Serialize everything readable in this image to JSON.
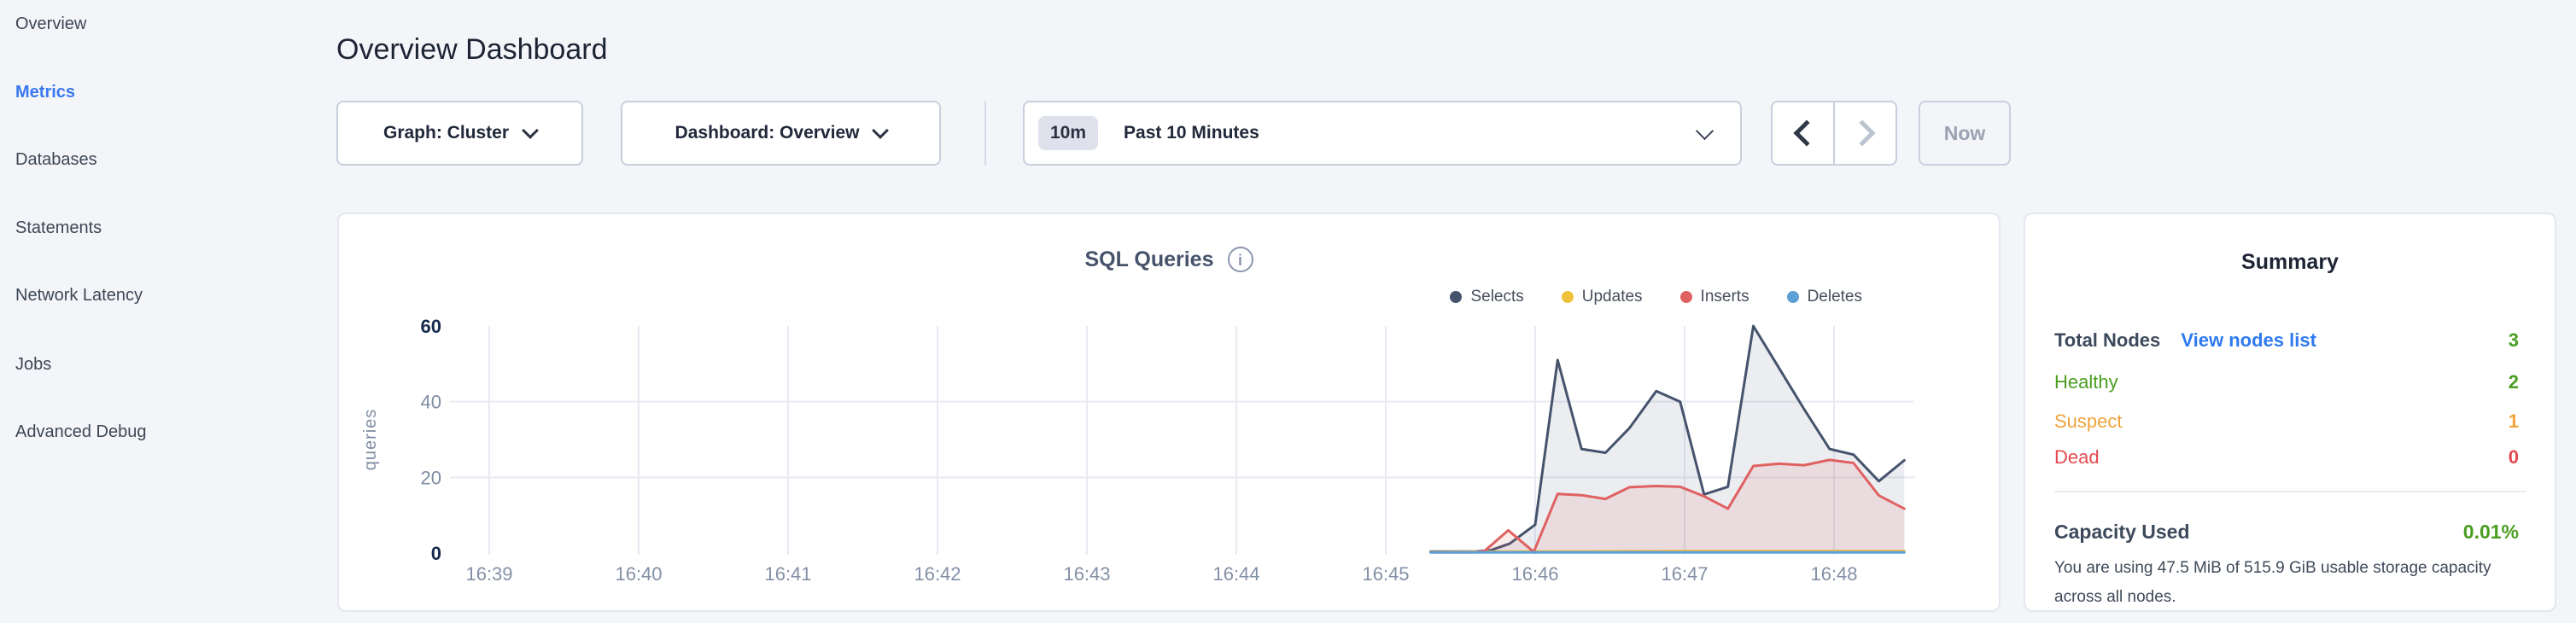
{
  "app": {
    "background": "#f3f5f9"
  },
  "icons": {
    "info": "i"
  },
  "sidebar": {
    "active_color": "#3a78ee",
    "item_color": "#3d4754",
    "items": [
      {
        "label": "Overview",
        "active": false
      },
      {
        "label": "Metrics",
        "active": true
      },
      {
        "label": "Databases",
        "active": false
      },
      {
        "label": "Statements",
        "active": false
      },
      {
        "label": "Network Latency",
        "active": false
      },
      {
        "label": "Jobs",
        "active": false
      },
      {
        "label": "Advanced Debug",
        "active": false
      }
    ]
  },
  "header": {
    "title": "Overview Dashboard"
  },
  "controls": {
    "graph_dropdown_label": "Graph: Cluster",
    "dashboard_dropdown_label": "Dashboard: Overview",
    "time_range_badge": "10m",
    "time_range_label": "Past 10 Minutes",
    "now_button_label": "Now"
  },
  "chart_data": {
    "type": "area",
    "title": "SQL Queries",
    "ylabel": "queries",
    "xticklabels": [
      "16:39",
      "16:40",
      "16:41",
      "16:42",
      "16:43",
      "16:44",
      "16:45",
      "16:46",
      "16:47",
      "16:48"
    ],
    "yticks": [
      0,
      20,
      40,
      60
    ],
    "ylim": [
      0,
      60
    ],
    "grid": true,
    "legend_position": "top-right",
    "x_note": "point x values are minutes after 16:39; data begins ~16:45.3 and ends ~16:48.5",
    "series": [
      {
        "name": "Selects",
        "color": "#46536d",
        "fill": "rgba(70,83,109,0.10)",
        "points": [
          [
            6.3,
            0.4
          ],
          [
            6.6,
            0.4
          ],
          [
            6.7,
            0.7
          ],
          [
            6.83,
            2.5
          ],
          [
            7.0,
            7.5
          ],
          [
            7.15,
            51
          ],
          [
            7.31,
            27.5
          ],
          [
            7.47,
            26.5
          ],
          [
            7.63,
            33
          ],
          [
            7.81,
            42.8
          ],
          [
            7.97,
            40
          ],
          [
            8.13,
            15.5
          ],
          [
            8.29,
            17.5
          ],
          [
            8.46,
            60
          ],
          [
            8.63,
            49
          ],
          [
            8.8,
            38
          ],
          [
            8.97,
            27.5
          ],
          [
            9.13,
            26
          ],
          [
            9.3,
            19
          ],
          [
            9.47,
            24.5
          ]
        ]
      },
      {
        "name": "Updates",
        "color": "#f0c23c",
        "fill": "rgba(240,194,60,0.10)",
        "points": [
          [
            6.3,
            0.3
          ],
          [
            7.15,
            0.4
          ],
          [
            8.0,
            0.5
          ],
          [
            8.97,
            0.5
          ],
          [
            9.47,
            0.5
          ]
        ]
      },
      {
        "name": "Inserts",
        "color": "#e06161",
        "fill": "rgba(224,97,97,0.12)",
        "points": [
          [
            6.3,
            0.2
          ],
          [
            6.6,
            0.2
          ],
          [
            6.66,
            0.5
          ],
          [
            6.82,
            6
          ],
          [
            6.99,
            0.3
          ],
          [
            7.15,
            15.6
          ],
          [
            7.31,
            15.3
          ],
          [
            7.47,
            14.3
          ],
          [
            7.63,
            17.4
          ],
          [
            7.81,
            17.7
          ],
          [
            7.97,
            17.5
          ],
          [
            8.13,
            15
          ],
          [
            8.29,
            11.7
          ],
          [
            8.46,
            23
          ],
          [
            8.63,
            23.6
          ],
          [
            8.8,
            23.2
          ],
          [
            8.97,
            24.6
          ],
          [
            9.13,
            23.8
          ],
          [
            9.3,
            15.2
          ],
          [
            9.47,
            11.7
          ]
        ]
      },
      {
        "name": "Deletes",
        "color": "#5ba0d6",
        "fill": "rgba(91,160,214,0.10)",
        "points": [
          [
            6.3,
            0.15
          ],
          [
            7.15,
            0.15
          ],
          [
            8.0,
            0.15
          ],
          [
            8.97,
            0.15
          ],
          [
            9.47,
            0.15
          ]
        ]
      }
    ],
    "style": {
      "gridline_color": "#e8eaf2",
      "axis_label_color": "#7e8ca3",
      "axis_label_emph_color": "#152a4d",
      "xtick_label_color": "#8390a6"
    }
  },
  "summary": {
    "title": "Summary",
    "rows": [
      {
        "label": "Total Nodes",
        "link": "View nodes list",
        "value": "3",
        "label_color": "#3d4a5c",
        "link_color": "#2f7af0",
        "value_color": "#4a9e20"
      },
      {
        "label": "Healthy",
        "value": "2",
        "label_color": "#4a9e20",
        "value_color": "#4a9e20"
      },
      {
        "label": "Suspect",
        "value": "1",
        "label_color": "#f0a33a",
        "value_color": "#f0a33a"
      },
      {
        "label": "Dead",
        "value": "0",
        "label_color": "#e4484f",
        "value_color": "#e4484f"
      }
    ],
    "capacity": {
      "label": "Capacity Used",
      "value": "0.01%",
      "value_color": "#4a9e20"
    },
    "capacity_note": "You are using 47.5 MiB of 515.9 GiB usable storage capacity across all nodes."
  }
}
